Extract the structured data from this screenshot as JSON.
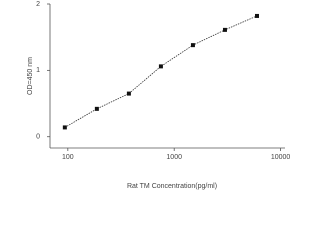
{
  "chart_data": {
    "type": "line",
    "x_label": "Rat TM Concentration(pg/ml)",
    "y_label": "OD=450 nm",
    "x_log": true,
    "series": [
      {
        "color": "#333333",
        "x": [
          93.75,
          187.5,
          375,
          750,
          1500,
          3000,
          6000
        ],
        "values": [
          0.14,
          0.42,
          0.65,
          1.06,
          1.38,
          1.61,
          1.82
        ]
      }
    ],
    "xlim": [
      68,
      11000
    ],
    "xticks": [
      100,
      1000,
      10000
    ],
    "ylim": [
      -0.17,
      2
    ],
    "yticks": [
      0,
      1,
      2
    ]
  }
}
